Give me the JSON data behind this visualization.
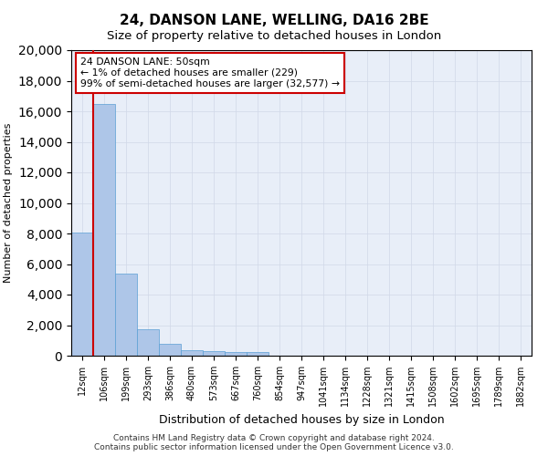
{
  "title": "24, DANSON LANE, WELLING, DA16 2BE",
  "subtitle": "Size of property relative to detached houses in London",
  "xlabel": "Distribution of detached houses by size in London",
  "ylabel": "Number of detached properties",
  "footnote": "Contains HM Land Registry data © Crown copyright and database right 2024.\nContains public sector information licensed under the Open Government Licence v3.0.",
  "categories": [
    "12sqm",
    "106sqm",
    "199sqm",
    "293sqm",
    "386sqm",
    "480sqm",
    "573sqm",
    "667sqm",
    "760sqm",
    "854sqm",
    "947sqm",
    "1041sqm",
    "1134sqm",
    "1228sqm",
    "1321sqm",
    "1415sqm",
    "1508sqm",
    "1602sqm",
    "1695sqm",
    "1789sqm",
    "1882sqm"
  ],
  "values": [
    8050,
    16500,
    5350,
    1750,
    780,
    350,
    275,
    230,
    220,
    0,
    0,
    0,
    0,
    0,
    0,
    0,
    0,
    0,
    0,
    0,
    0
  ],
  "bar_color": "#aec6e8",
  "bar_edge_color": "#5a9fd4",
  "annotation_box_text": "24 DANSON LANE: 50sqm\n← 1% of detached houses are smaller (229)\n99% of semi-detached houses are larger (32,577) →",
  "annotation_box_color": "#ffffff",
  "annotation_box_edge_color": "#cc0000",
  "annotation_line_color": "#cc0000",
  "ylim": [
    0,
    20000
  ],
  "yticks": [
    0,
    2000,
    4000,
    6000,
    8000,
    10000,
    12000,
    14000,
    16000,
    18000,
    20000
  ],
  "grid_color": "#d0d8e8",
  "background_color": "#e8eef8",
  "title_fontsize": 11,
  "subtitle_fontsize": 9.5
}
